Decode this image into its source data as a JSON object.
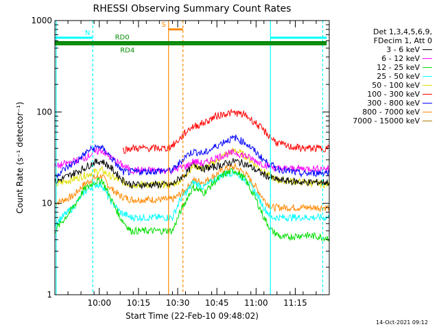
{
  "chart_data": {
    "type": "line",
    "title": "RHESSI Observing Summary Count Rates",
    "xlabel": "Start Time (22-Feb-10 09:48:02)",
    "ylabel": "Count Rate (s⁻¹ detector⁻¹)",
    "yscale": "log",
    "ylim": [
      1,
      1000
    ],
    "xlim_minutes": [
      -5,
      100
    ],
    "x_ticks": [
      {
        "label": "10:00",
        "minute": 12
      },
      {
        "label": "10:15",
        "minute": 27
      },
      {
        "label": "10:30",
        "minute": 42
      },
      {
        "label": "10:45",
        "minute": 57
      },
      {
        "label": "11:00",
        "minute": 72
      },
      {
        "label": "11:15",
        "minute": 87
      }
    ],
    "y_ticks": [
      {
        "label": "1",
        "value": 1
      },
      {
        "label": "10",
        "value": 10
      },
      {
        "label": "100",
        "value": 100
      },
      {
        "label": "1000",
        "value": 1000
      }
    ],
    "legend_header": [
      "Det 1,3,4,5,6,9,",
      "FDecim 1, Att 0"
    ],
    "legend_position": "right",
    "series": [
      {
        "name": "3 - 6 keV",
        "color": "#000000",
        "points": [
          [
            -5,
            17
          ],
          [
            6,
            24
          ],
          [
            10,
            28
          ],
          [
            13,
            29
          ],
          [
            16,
            25
          ],
          [
            21,
            18
          ],
          [
            24,
            16
          ],
          [
            40,
            16
          ],
          [
            42,
            18
          ],
          [
            45,
            21
          ],
          [
            48,
            27
          ],
          [
            52,
            24
          ],
          [
            56,
            25
          ],
          [
            60,
            27
          ],
          [
            64,
            29
          ],
          [
            68,
            27
          ],
          [
            72,
            23
          ],
          [
            76,
            20
          ],
          [
            80,
            18
          ],
          [
            90,
            17
          ],
          [
            100,
            17
          ]
        ]
      },
      {
        "name": "6 - 12 keV",
        "color": "#ff00ff",
        "points": [
          [
            -5,
            25
          ],
          [
            6,
            31
          ],
          [
            10,
            36
          ],
          [
            13,
            38
          ],
          [
            16,
            32
          ],
          [
            21,
            26
          ],
          [
            24,
            23
          ],
          [
            40,
            23
          ],
          [
            42,
            24
          ],
          [
            46,
            26
          ],
          [
            48,
            29
          ],
          [
            52,
            27
          ],
          [
            56,
            31
          ],
          [
            60,
            34
          ],
          [
            64,
            36
          ],
          [
            68,
            33
          ],
          [
            72,
            29
          ],
          [
            76,
            26
          ],
          [
            80,
            24
          ],
          [
            90,
            24
          ],
          [
            100,
            24
          ]
        ]
      },
      {
        "name": "12 - 25 keV",
        "color": "#00dd00",
        "points": [
          [
            -5,
            5
          ],
          [
            2,
            9
          ],
          [
            6,
            14
          ],
          [
            10,
            17
          ],
          [
            13,
            18
          ],
          [
            16,
            12
          ],
          [
            20,
            7
          ],
          [
            24,
            5
          ],
          [
            40,
            5
          ],
          [
            43,
            8
          ],
          [
            46,
            12
          ],
          [
            48,
            15
          ],
          [
            52,
            13
          ],
          [
            56,
            17
          ],
          [
            60,
            21
          ],
          [
            64,
            23
          ],
          [
            68,
            18
          ],
          [
            72,
            11
          ],
          [
            75,
            7
          ],
          [
            78,
            5
          ],
          [
            82,
            4.2
          ],
          [
            90,
            4.5
          ],
          [
            100,
            4.2
          ]
        ]
      },
      {
        "name": "25 - 50 keV",
        "color": "#00ffff",
        "points": [
          [
            -5,
            6
          ],
          [
            2,
            9
          ],
          [
            6,
            13
          ],
          [
            10,
            16
          ],
          [
            13,
            16
          ],
          [
            16,
            11
          ],
          [
            20,
            8
          ],
          [
            24,
            7
          ],
          [
            40,
            7
          ],
          [
            43,
            11
          ],
          [
            46,
            14
          ],
          [
            48,
            17
          ],
          [
            52,
            15
          ],
          [
            56,
            18
          ],
          [
            60,
            21
          ],
          [
            64,
            22
          ],
          [
            68,
            18
          ],
          [
            72,
            13
          ],
          [
            75,
            9
          ],
          [
            78,
            7
          ],
          [
            90,
            7
          ],
          [
            100,
            7
          ]
        ]
      },
      {
        "name": "50 - 100 keV",
        "color": "#ffff00",
        "points": [
          [
            -5,
            16
          ],
          [
            6,
            20
          ],
          [
            10,
            22
          ],
          [
            13,
            23
          ],
          [
            16,
            20
          ],
          [
            21,
            17
          ],
          [
            24,
            16
          ],
          [
            40,
            16
          ],
          [
            43,
            18
          ],
          [
            46,
            22
          ],
          [
            48,
            26
          ],
          [
            52,
            24
          ],
          [
            56,
            28
          ],
          [
            60,
            34
          ],
          [
            64,
            38
          ],
          [
            68,
            33
          ],
          [
            72,
            26
          ],
          [
            76,
            21
          ],
          [
            80,
            18
          ],
          [
            90,
            17
          ],
          [
            100,
            16
          ]
        ]
      },
      {
        "name": "100 - 300 keV",
        "color": "#ff0000",
        "points": [
          [
            21,
            38
          ],
          [
            24,
            40
          ],
          [
            38,
            40
          ],
          [
            41,
            45
          ],
          [
            44,
            55
          ],
          [
            47,
            68
          ],
          [
            50,
            72
          ],
          [
            53,
            78
          ],
          [
            56,
            88
          ],
          [
            60,
            96
          ],
          [
            64,
            98
          ],
          [
            68,
            92
          ],
          [
            72,
            75
          ],
          [
            76,
            58
          ],
          [
            80,
            46
          ],
          [
            84,
            42
          ],
          [
            90,
            40
          ],
          [
            100,
            40
          ]
        ]
      },
      {
        "name": "300 - 800 keV",
        "color": "#0000ff",
        "points": [
          [
            -5,
            20
          ],
          [
            4,
            30
          ],
          [
            8,
            38
          ],
          [
            12,
            42
          ],
          [
            15,
            36
          ],
          [
            18,
            28
          ],
          [
            21,
            22
          ],
          [
            24,
            22
          ],
          [
            40,
            23
          ],
          [
            42,
            26
          ],
          [
            45,
            33
          ],
          [
            48,
            37
          ],
          [
            52,
            35
          ],
          [
            56,
            41
          ],
          [
            60,
            48
          ],
          [
            64,
            52
          ],
          [
            68,
            46
          ],
          [
            72,
            36
          ],
          [
            76,
            28
          ],
          [
            80,
            24
          ],
          [
            86,
            22
          ],
          [
            90,
            21
          ],
          [
            100,
            22
          ]
        ]
      },
      {
        "name": "800 - 7000 keV",
        "color": "#ff8800",
        "points": [
          [
            -5,
            10
          ],
          [
            2,
            12
          ],
          [
            6,
            16
          ],
          [
            10,
            19
          ],
          [
            13,
            20
          ],
          [
            16,
            15
          ],
          [
            20,
            12
          ],
          [
            24,
            11
          ],
          [
            40,
            11
          ],
          [
            42,
            12
          ],
          [
            45,
            14
          ],
          [
            48,
            18
          ],
          [
            52,
            17
          ],
          [
            56,
            20
          ],
          [
            60,
            24
          ],
          [
            64,
            25
          ],
          [
            68,
            21
          ],
          [
            72,
            15
          ],
          [
            75,
            11
          ],
          [
            78,
            9
          ],
          [
            90,
            9
          ],
          [
            100,
            9
          ]
        ]
      },
      {
        "name": "7000 - 15000 keV",
        "color": "#aa7700",
        "points": []
      }
    ],
    "annotations": [
      {
        "label": "N",
        "color": "#00ffff",
        "y": 650
      },
      {
        "label": "RD0",
        "color": "#008800",
        "y": 580
      },
      {
        "label": "RD4",
        "color": "#008800",
        "y": 550
      },
      {
        "label": "S",
        "color": "#ff8800",
        "y": 800
      }
    ]
  },
  "footer": {
    "timestamp": "14-Oct-2021 09:12"
  }
}
